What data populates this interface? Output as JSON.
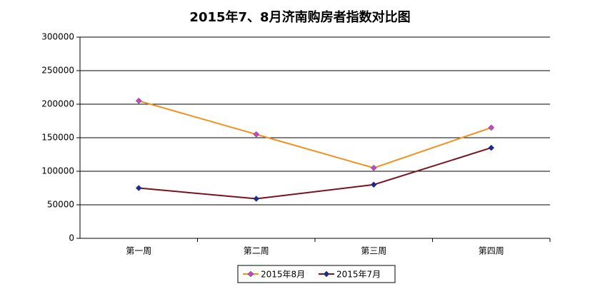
{
  "chart_data": {
    "type": "line",
    "title": "2015年7、8月济南购房者指数对比图",
    "categories": [
      "第一周",
      "第二周",
      "第三周",
      "第四周"
    ],
    "series": [
      {
        "name": "2015年8月",
        "color": "#f0901e",
        "marker_color": "#cc44cc",
        "values": [
          205000,
          155000,
          105000,
          165000
        ]
      },
      {
        "name": "2015年7月",
        "color": "#7a1020",
        "marker_color": "#1a2aa0",
        "values": [
          75000,
          59000,
          80000,
          135000
        ]
      }
    ],
    "ylim": [
      0,
      300000
    ],
    "yticks": [
      0,
      50000,
      100000,
      150000,
      200000,
      250000,
      300000
    ],
    "grid": true,
    "legend": "bottom"
  }
}
